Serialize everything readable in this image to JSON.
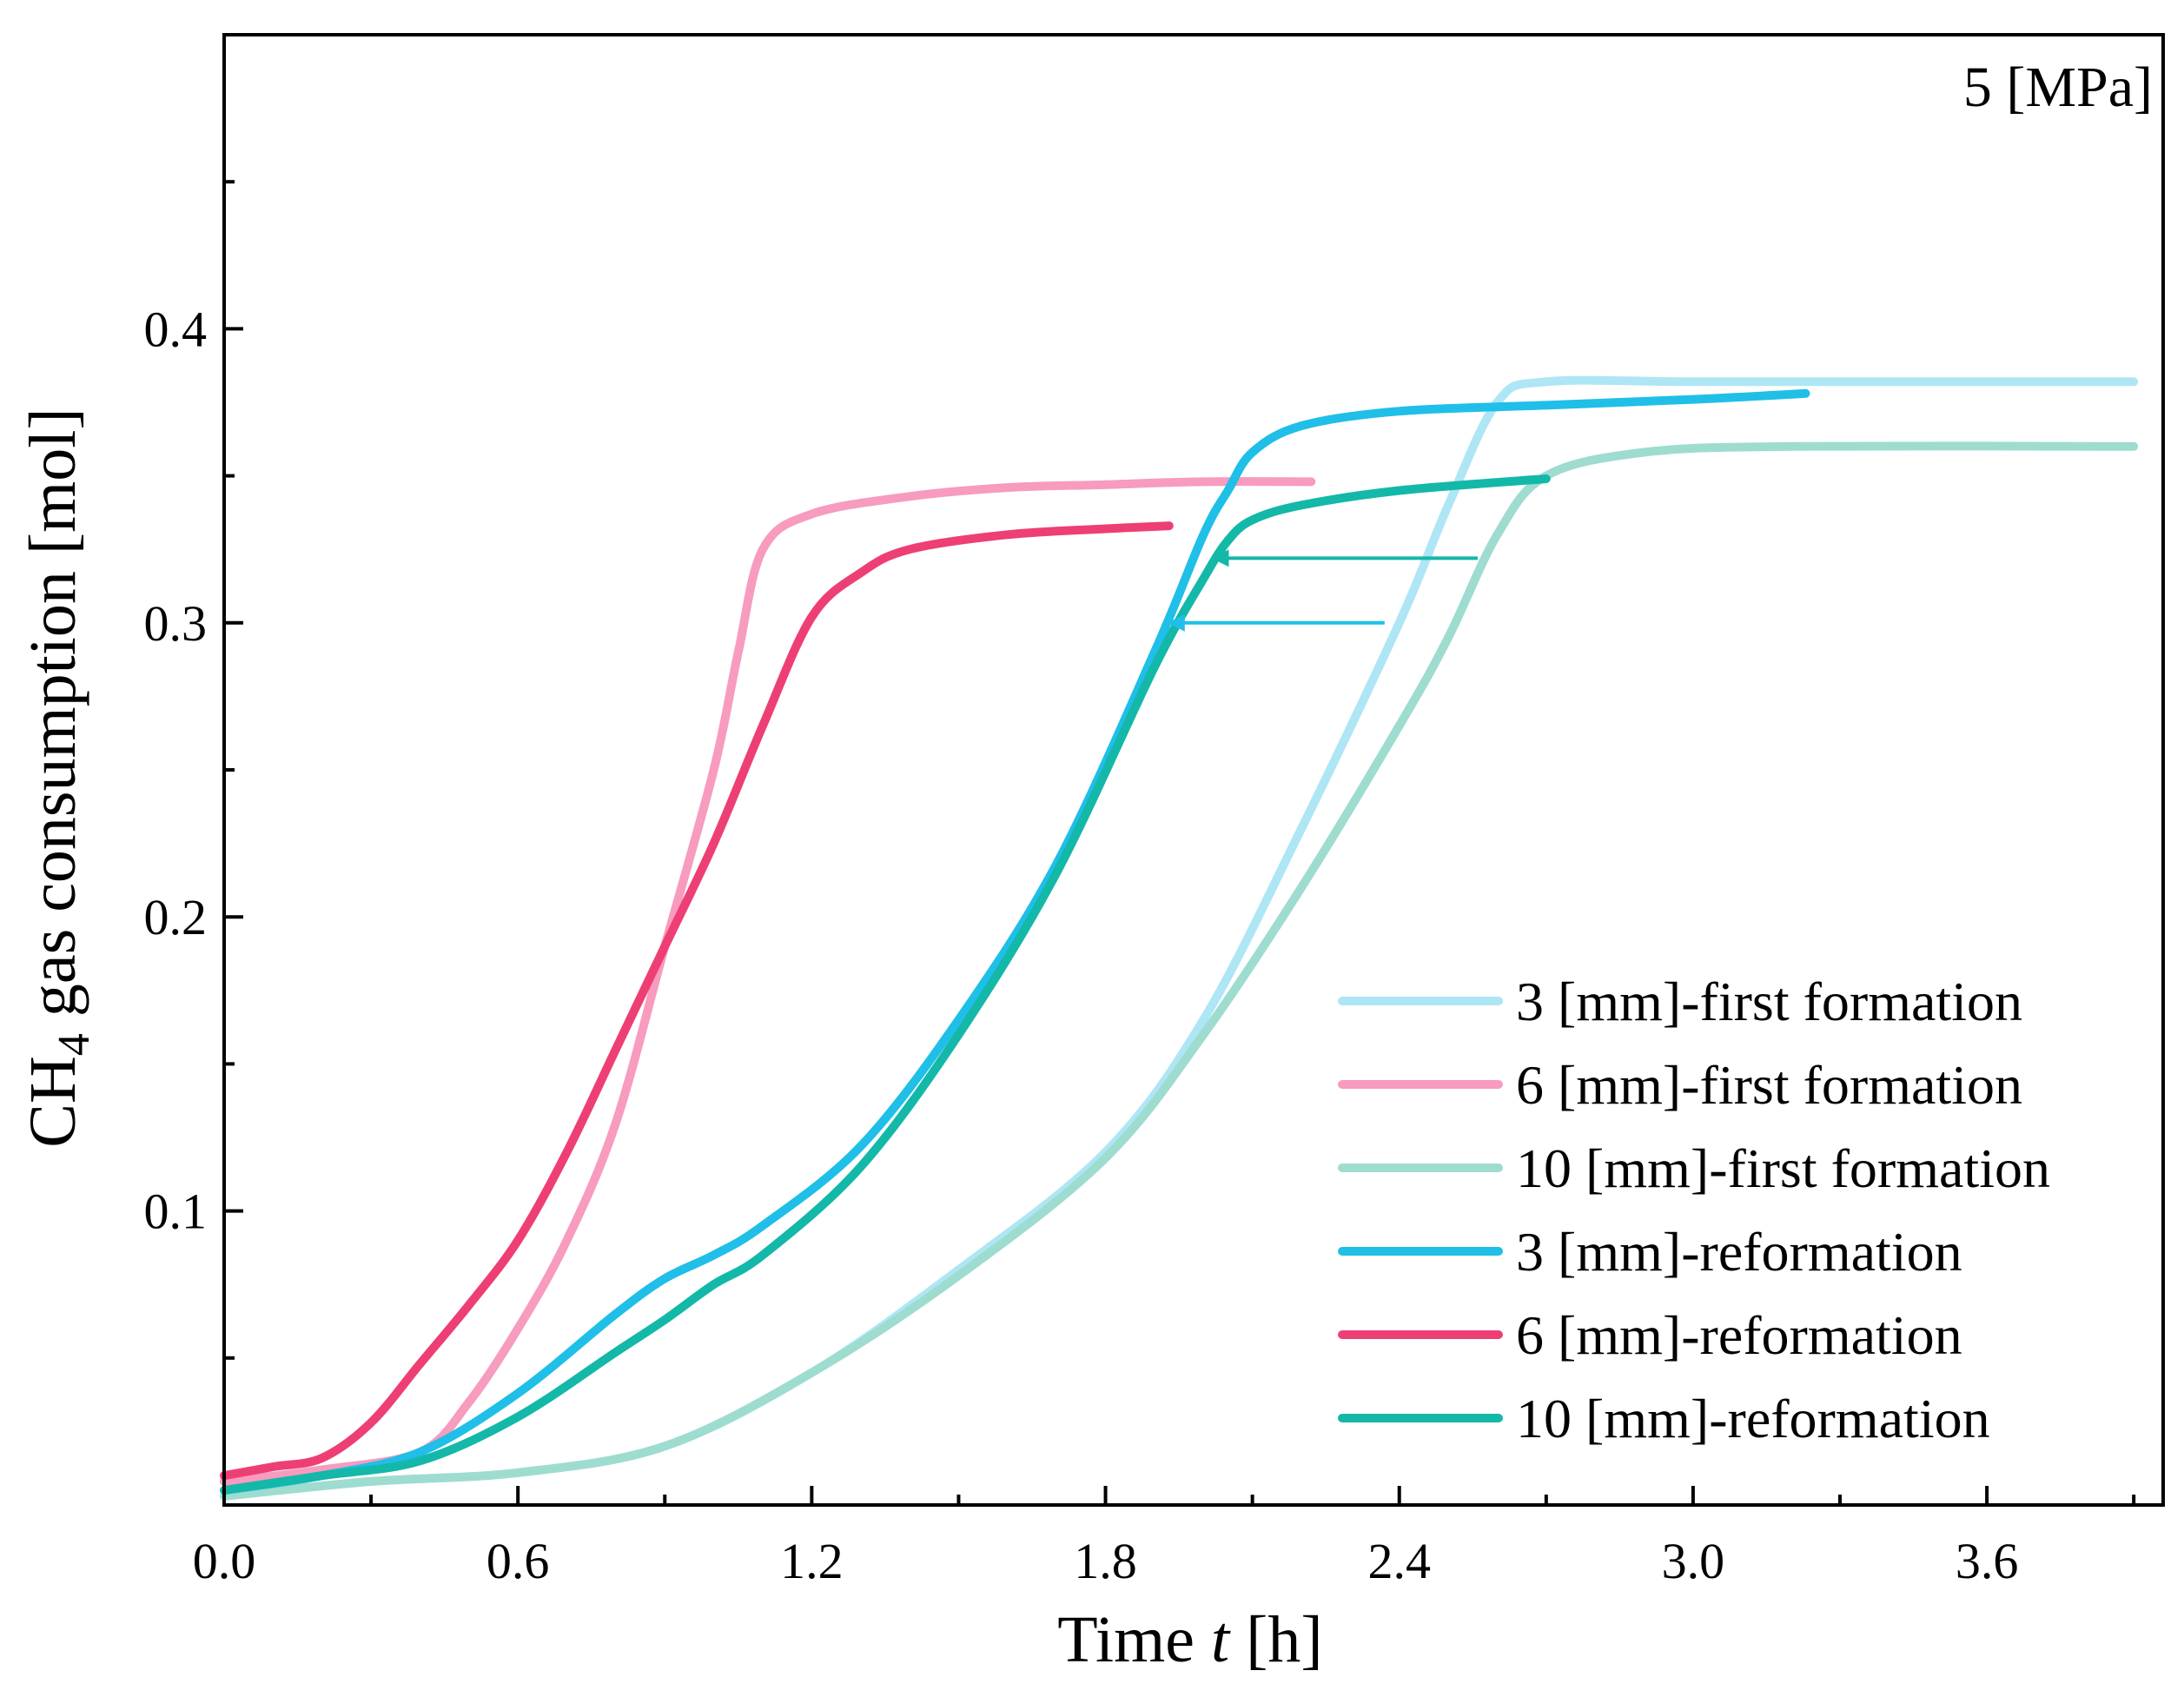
{
  "chart_data": {
    "type": "line",
    "title": "",
    "annotation": "5 [MPa]",
    "xlabel": {
      "prefix": "Time ",
      "var": "t",
      "suffix": " [h]"
    },
    "ylabel": {
      "prefix": "CH",
      "sub": "4",
      "suffix": " gas consumption [mol]"
    },
    "xlim": [
      0.0,
      3.96
    ],
    "ylim": [
      0.0,
      0.5
    ],
    "xticks": [
      0.0,
      0.6,
      1.2,
      1.8,
      2.4,
      3.0,
      3.6
    ],
    "xtick_labels": [
      "0.0",
      "0.6",
      "1.2",
      "1.8",
      "2.4",
      "3.0",
      "3.6"
    ],
    "yticks": [
      0.1,
      0.2,
      0.3,
      0.4
    ],
    "ytick_labels": [
      "0.1",
      "0.2",
      "0.3",
      "0.4"
    ],
    "grid": false,
    "legend_position": "bottom-right",
    "series": [
      {
        "name": "3 [mm]-first formation",
        "color": "#aee6f5",
        "x": [
          0.0,
          0.3,
          0.6,
          0.9,
          1.2,
          1.5,
          1.8,
          2.0,
          2.2,
          2.4,
          2.5,
          2.6,
          2.7,
          3.0,
          3.5,
          3.9
        ],
        "y": [
          0.003,
          0.008,
          0.011,
          0.02,
          0.045,
          0.08,
          0.12,
          0.165,
          0.23,
          0.3,
          0.34,
          0.375,
          0.382,
          0.382,
          0.382,
          0.382
        ]
      },
      {
        "name": "6 [mm]-first formation",
        "color": "#f79bbf",
        "x": [
          0.0,
          0.2,
          0.4,
          0.5,
          0.6,
          0.7,
          0.8,
          0.9,
          1.0,
          1.05,
          1.1,
          1.2,
          1.4,
          1.6,
          1.8,
          2.0,
          2.22
        ],
        "y": [
          0.008,
          0.012,
          0.018,
          0.035,
          0.06,
          0.09,
          0.13,
          0.19,
          0.25,
          0.29,
          0.325,
          0.337,
          0.343,
          0.346,
          0.347,
          0.348,
          0.348
        ]
      },
      {
        "name": "10 [mm]-first formation",
        "color": "#9edcd0",
        "x": [
          0.0,
          0.3,
          0.6,
          0.9,
          1.2,
          1.5,
          1.8,
          2.0,
          2.2,
          2.4,
          2.5,
          2.6,
          2.7,
          2.9,
          3.2,
          3.9
        ],
        "y": [
          0.003,
          0.008,
          0.011,
          0.02,
          0.045,
          0.078,
          0.118,
          0.16,
          0.21,
          0.265,
          0.295,
          0.33,
          0.35,
          0.358,
          0.36,
          0.36
        ]
      },
      {
        "name": "3 [mm]-reformation",
        "color": "#1fbfe8",
        "x": [
          0.0,
          0.2,
          0.4,
          0.6,
          0.8,
          0.9,
          1.0,
          1.1,
          1.3,
          1.5,
          1.7,
          1.9,
          2.0,
          2.05,
          2.1,
          2.2,
          2.4,
          2.7,
          3.0,
          3.23
        ],
        "y": [
          0.005,
          0.01,
          0.018,
          0.038,
          0.065,
          0.077,
          0.085,
          0.095,
          0.122,
          0.165,
          0.218,
          0.29,
          0.33,
          0.345,
          0.358,
          0.367,
          0.372,
          0.374,
          0.376,
          0.378
        ]
      },
      {
        "name": "6 [mm]-reformation",
        "color": "#ee3f74",
        "x": [
          0.0,
          0.1,
          0.2,
          0.3,
          0.4,
          0.5,
          0.6,
          0.7,
          0.8,
          0.9,
          1.0,
          1.1,
          1.2,
          1.3,
          1.4,
          1.6,
          1.8,
          1.93
        ],
        "y": [
          0.01,
          0.013,
          0.016,
          0.028,
          0.048,
          0.068,
          0.09,
          0.12,
          0.155,
          0.19,
          0.225,
          0.265,
          0.302,
          0.317,
          0.325,
          0.33,
          0.332,
          0.333
        ]
      },
      {
        "name": "10 [mm]-reformation",
        "color": "#13b8a8",
        "x": [
          0.0,
          0.2,
          0.4,
          0.6,
          0.8,
          0.9,
          1.0,
          1.1,
          1.3,
          1.5,
          1.7,
          1.9,
          2.0,
          2.05,
          2.1,
          2.2,
          2.4,
          2.7
        ],
        "y": [
          0.005,
          0.01,
          0.015,
          0.03,
          0.052,
          0.063,
          0.075,
          0.085,
          0.115,
          0.16,
          0.215,
          0.285,
          0.315,
          0.328,
          0.335,
          0.34,
          0.345,
          0.349
        ]
      }
    ],
    "arrows": [
      {
        "color": "#13b8a8",
        "from": [
          2.56,
          0.322
        ],
        "to": [
          2.02,
          0.322
        ]
      },
      {
        "color": "#1fbfe8",
        "from": [
          2.37,
          0.3
        ],
        "to": [
          1.93,
          0.3
        ]
      }
    ]
  }
}
